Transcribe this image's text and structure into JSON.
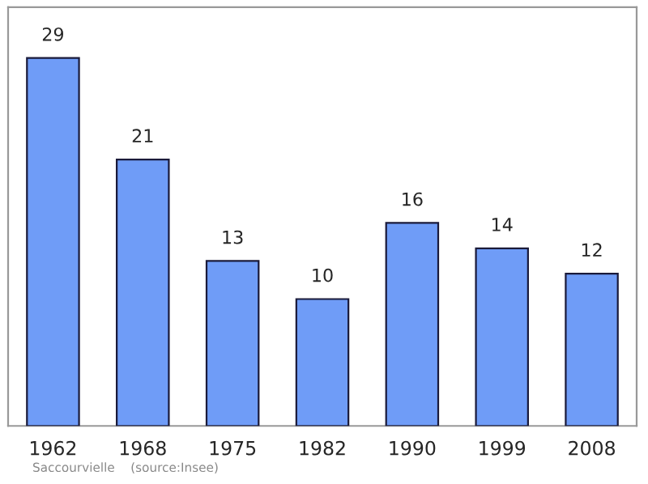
{
  "chart_data": {
    "type": "bar",
    "categories": [
      "1962",
      "1968",
      "1975",
      "1982",
      "1990",
      "1999",
      "2008"
    ],
    "values": [
      29,
      21,
      13,
      10,
      16,
      14,
      12
    ],
    "color": "#6f9cf7",
    "data_labels": true,
    "ylim": [
      0,
      33
    ],
    "tick_labels": "x",
    "grid": false,
    "annotations": [
      "Saccourvielle    (source:Insee)"
    ]
  }
}
